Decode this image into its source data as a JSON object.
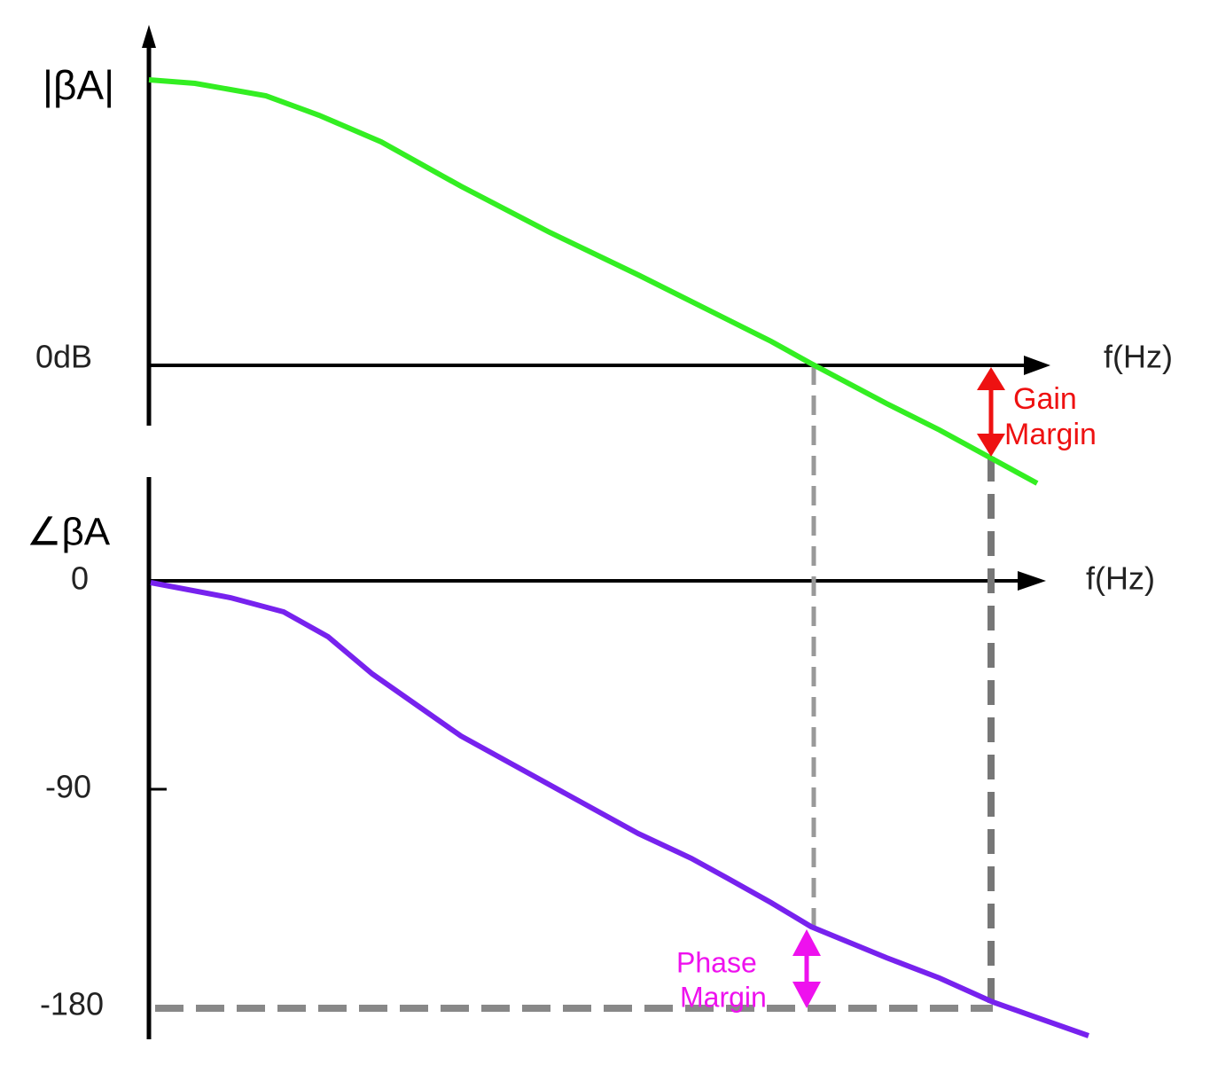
{
  "magnitude_plot": {
    "y_label": "|βA|",
    "zero_label": "0dB",
    "x_label": "f(Hz)"
  },
  "phase_plot": {
    "y_label": "∠βA",
    "ticks": [
      "0",
      "-90",
      "-180"
    ],
    "x_label": "f(Hz)"
  },
  "annotations": {
    "gain_margin": [
      "Gain",
      "Margin"
    ],
    "phase_margin": [
      "Phase",
      "Margin"
    ]
  }
}
